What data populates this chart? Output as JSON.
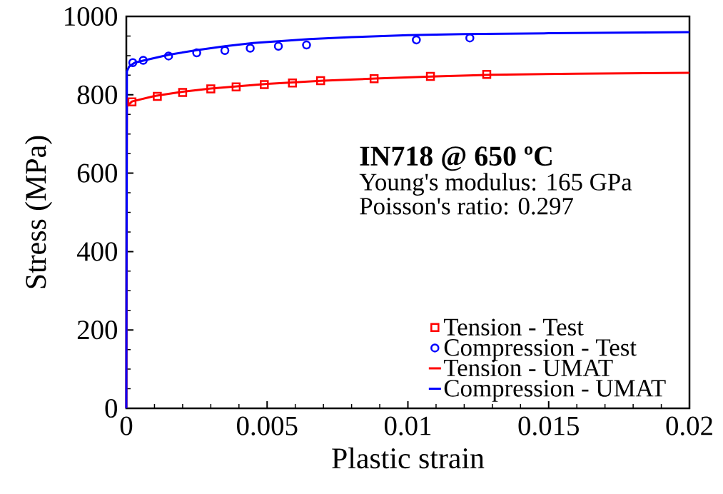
{
  "chart_data": {
    "type": "line",
    "xlabel": "Plastic strain",
    "ylabel": "Stress (MPa)",
    "xlim": [
      0,
      0.02
    ],
    "ylim": [
      0,
      1000
    ],
    "xticks": [
      0,
      0.005,
      0.01,
      0.015,
      0.02
    ],
    "yticks": [
      0,
      200,
      400,
      600,
      800,
      1000
    ],
    "legend": "bottom right",
    "annotations": [
      "IN718 @ 650 ºC",
      "Young's modulus: 165 GPa",
      "Poisson's ratio: 0.297"
    ],
    "series": [
      {
        "name": "Tension - Test",
        "type": "scatter",
        "marker": "square",
        "color": "#ff0000",
        "x": [
          0.0002,
          0.0011,
          0.002,
          0.003,
          0.0039,
          0.0049,
          0.0059,
          0.0069,
          0.0088,
          0.0108,
          0.0128
        ],
        "values": [
          782,
          796,
          806,
          815,
          820,
          826,
          830,
          836,
          841,
          847,
          852
        ]
      },
      {
        "name": "Compression - Test",
        "type": "scatter",
        "marker": "circle",
        "color": "#0000ff",
        "x": [
          0.00023,
          0.0006,
          0.0015,
          0.0025,
          0.0035,
          0.0044,
          0.0054,
          0.0064,
          0.0103,
          0.0122
        ],
        "values": [
          882,
          888,
          899,
          907,
          913,
          919,
          924,
          927,
          940,
          945
        ]
      },
      {
        "name": "Tension - UMAT",
        "type": "line",
        "color": "#ff0000",
        "x": [
          0,
          2e-05,
          0.0002,
          0.001,
          0.002,
          0.003,
          0.004,
          0.005,
          0.006,
          0.007,
          0.009,
          0.011,
          0.013,
          0.016,
          0.02
        ],
        "values": [
          0,
          770,
          783,
          797,
          808,
          816,
          822,
          828,
          832,
          836,
          842,
          847,
          851,
          854,
          856
        ]
      },
      {
        "name": "Compression - UMAT",
        "type": "line",
        "color": "#0000ff",
        "x": [
          0,
          2e-05,
          0.0001,
          0.0003,
          0.0007,
          0.0015,
          0.0025,
          0.0035,
          0.0045,
          0.0055,
          0.0065,
          0.008,
          0.01,
          0.012,
          0.015,
          0.02
        ],
        "values": [
          0,
          860,
          872,
          882,
          889,
          902,
          914,
          924,
          932,
          937,
          942,
          947,
          952,
          955,
          957,
          960
        ]
      }
    ]
  }
}
